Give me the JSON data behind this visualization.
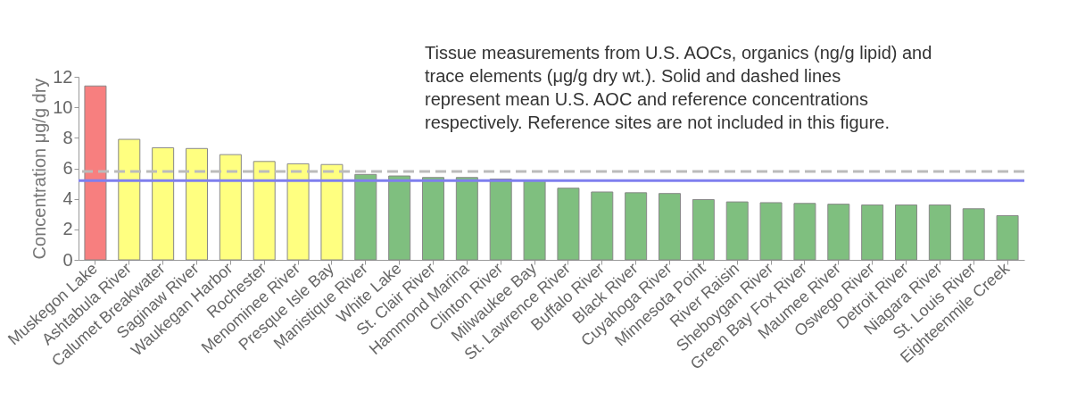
{
  "chart_data": {
    "type": "bar",
    "ylabel": "Concentration μg/g dry",
    "annotations": [
      "Tissue measurements from  U.S. AOCs, organics (ng/g lipid) and trace elements (μg/g dry wt.). Solid and dashed lines represent mean U.S. AOC and reference concentrations respectively. Reference sites are not included in this figure."
    ],
    "categories": [
      "Muskegon Lake",
      "Ashtabula River",
      "Calumet Breakwater",
      "Saginaw River",
      "Waukegan Harbor",
      "Rochester",
      "Menominee River",
      "Presque Isle Bay",
      "Manistique River",
      "White Lake",
      "St. Clair River",
      "Hammond Marina",
      "Clinton River",
      "Milwaukee Bay",
      "St. Lawrence River",
      "Buffalo River",
      "Black River",
      "Cuyahoga River",
      "Minnesota Point",
      "River Raisin",
      "Sheboygan River",
      "Green Bay Fox River",
      "Maumee River",
      "Oswego River",
      "Detroit River",
      "Niagara River",
      "St. Louis River",
      "Eighteenmile Creek"
    ],
    "values": [
      11.4,
      7.9,
      7.35,
      7.3,
      6.9,
      6.45,
      6.3,
      6.25,
      5.6,
      5.5,
      5.4,
      5.4,
      5.3,
      5.2,
      4.7,
      4.45,
      4.4,
      4.35,
      3.95,
      3.8,
      3.75,
      3.7,
      3.65,
      3.6,
      3.6,
      3.6,
      3.35,
      2.9
    ],
    "colors": [
      "#f77f7f",
      "#ffff80",
      "#ffff80",
      "#ffff80",
      "#ffff80",
      "#ffff80",
      "#ffff80",
      "#ffff80",
      "#7fbf7f",
      "#7fbf7f",
      "#7fbf7f",
      "#7fbf7f",
      "#7fbf7f",
      "#7fbf7f",
      "#7fbf7f",
      "#7fbf7f",
      "#7fbf7f",
      "#7fbf7f",
      "#7fbf7f",
      "#7fbf7f",
      "#7fbf7f",
      "#7fbf7f",
      "#7fbf7f",
      "#7fbf7f",
      "#7fbf7f",
      "#7fbf7f",
      "#7fbf7f",
      "#7fbf7f"
    ],
    "ylim": [
      0,
      12
    ],
    "yticks": [
      0,
      2,
      4,
      6,
      8,
      10,
      12
    ],
    "grid": false,
    "ref_lines": [
      {
        "axis": "y",
        "value": 5.8,
        "color": "#bbbbbb",
        "line_style": "dashed"
      },
      {
        "axis": "y",
        "value": 5.2,
        "color": "#7f7fef",
        "line_style": "solid"
      }
    ]
  }
}
